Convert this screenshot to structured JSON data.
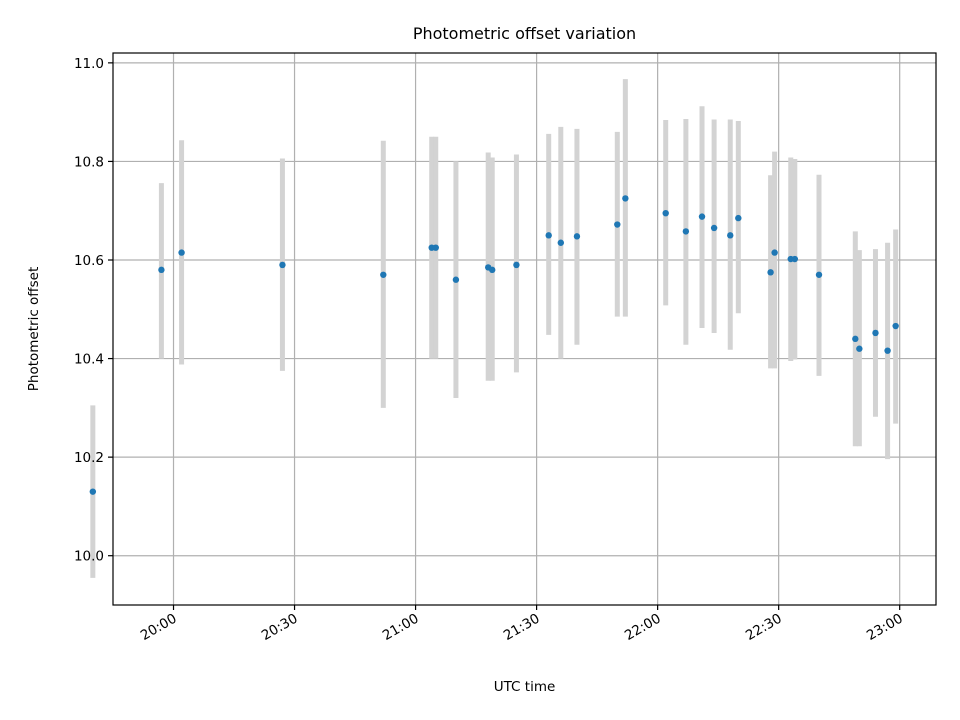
{
  "chart_data": {
    "type": "scatter",
    "title": "Photometric offset variation",
    "xlabel": "UTC time",
    "ylabel": "Photometric offset",
    "x_ticks": [
      "20:00",
      "20:30",
      "21:00",
      "21:30",
      "22:00",
      "22:30",
      "23:00"
    ],
    "y_ticks": [
      "10.0",
      "10.2",
      "10.4",
      "10.6",
      "10.8",
      "11.0"
    ],
    "xlim": [
      "19:45",
      "23:09"
    ],
    "ylim": [
      9.9,
      11.02
    ],
    "grid": true,
    "colors": {
      "point": "#1f77b4",
      "errorbar": "#d3d3d3"
    },
    "series": [
      {
        "x": [
          "19:40",
          "19:57",
          "20:02",
          "20:27",
          "20:52",
          "21:04",
          "21:05",
          "21:10",
          "21:18",
          "21:19",
          "21:25",
          "21:33",
          "21:36",
          "21:40",
          "21:50",
          "21:52",
          "22:02",
          "22:07",
          "22:11",
          "22:14",
          "22:18",
          "22:20",
          "22:28",
          "22:29",
          "22:33",
          "22:34",
          "22:40",
          "22:49",
          "22:50",
          "22:54",
          "22:57",
          "22:59"
        ],
        "y": [
          10.13,
          10.58,
          10.615,
          10.59,
          10.57,
          10.625,
          10.625,
          10.56,
          10.585,
          10.58,
          10.59,
          10.65,
          10.635,
          10.648,
          10.672,
          10.725,
          10.695,
          10.658,
          10.688,
          10.665,
          10.65,
          10.685,
          10.575,
          10.615,
          10.602,
          10.602,
          10.57,
          10.44,
          10.42,
          10.452,
          10.416,
          10.466
        ],
        "err_low": [
          9.955,
          10.4,
          10.388,
          10.375,
          10.3,
          10.4,
          10.4,
          10.32,
          10.355,
          10.355,
          10.372,
          10.448,
          10.4,
          10.428,
          10.485,
          10.485,
          10.508,
          10.428,
          10.462,
          10.452,
          10.418,
          10.492,
          10.38,
          10.38,
          10.395,
          10.398,
          10.365,
          10.222,
          10.222,
          10.282,
          10.196,
          10.268
        ],
        "err_high": [
          10.305,
          10.756,
          10.843,
          10.806,
          10.842,
          10.85,
          10.85,
          10.8,
          10.818,
          10.808,
          10.814,
          10.856,
          10.87,
          10.866,
          10.86,
          10.967,
          10.884,
          10.886,
          10.912,
          10.885,
          10.885,
          10.882,
          10.772,
          10.82,
          10.808,
          10.805,
          10.773,
          10.658,
          10.62,
          10.622,
          10.635,
          10.662
        ]
      }
    ]
  }
}
